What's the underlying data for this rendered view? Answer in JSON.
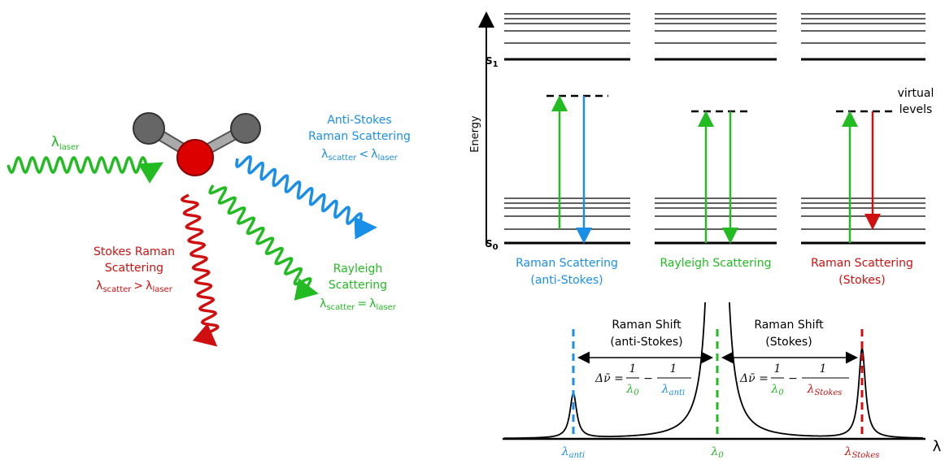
{
  "scattering": {
    "incident": {
      "symbol": "λ",
      "sub": "laser"
    },
    "anti_stokes": {
      "lines": [
        "Anti-Stokes",
        "Raman Scattering"
      ],
      "relation": {
        "left": [
          "λ",
          "scatter"
        ],
        "op": "<",
        "right": [
          "λ",
          "laser"
        ]
      }
    },
    "stokes": {
      "lines": [
        "Stokes Raman",
        "Scattering"
      ],
      "relation": {
        "left": [
          "λ",
          "scatter"
        ],
        "op": ">",
        "right": [
          "λ",
          "laser"
        ]
      }
    },
    "rayleigh": {
      "lines": [
        "Rayleigh",
        "Scattering"
      ],
      "relation": {
        "left": [
          "λ",
          "scatter"
        ],
        "op": "=",
        "right": [
          "λ",
          "laser"
        ]
      }
    }
  },
  "energy_diagram": {
    "axis_label": "Energy",
    "s1": [
      "S",
      "1"
    ],
    "s0": [
      "S",
      "0"
    ],
    "virtual_levels": [
      "virtual",
      "levels"
    ],
    "panels": [
      {
        "lines": [
          "Raman Scattering",
          "(anti-Stokes)"
        ]
      },
      {
        "lines": [
          "Rayleigh Scattering"
        ]
      },
      {
        "lines": [
          "Raman Scattering",
          "(Stokes)"
        ]
      }
    ]
  },
  "spectrum": {
    "anti_stokes_shift": [
      "Raman Shift",
      "(anti-Stokes)"
    ],
    "stokes_shift": [
      "Raman Shift",
      "(Stokes)"
    ],
    "anti_formula": {
      "lhs": "Δν̄ =",
      "num1": "1",
      "den1": [
        "λ",
        "0"
      ],
      "minus": "−",
      "num2": "1",
      "den2": [
        "λ",
        "anti"
      ]
    },
    "stokes_formula": {
      "lhs": "Δν̄ =",
      "num1": "1",
      "den1": [
        "λ",
        "0"
      ],
      "minus": "−",
      "num2": "1",
      "den2": [
        "λ",
        "Stokes"
      ]
    },
    "x_labels": {
      "anti": [
        "λ",
        "anti"
      ],
      "zero": [
        "λ",
        "0"
      ],
      "stokes": [
        "λ",
        "Stokes"
      ]
    },
    "axis_label": "λ"
  }
}
